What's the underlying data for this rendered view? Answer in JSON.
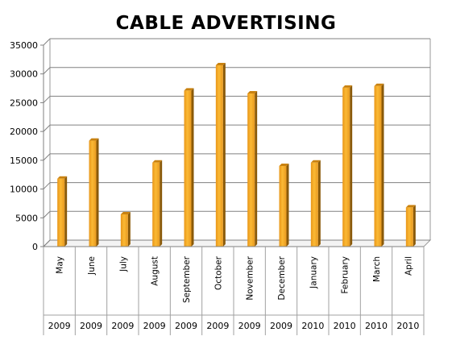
{
  "chart_data": {
    "type": "bar",
    "title": "CABLE ADVERTISING",
    "categories": [
      "May",
      "June",
      "July",
      "August",
      "September",
      "October",
      "November",
      "December",
      "January",
      "February",
      "March",
      "April"
    ],
    "years": [
      "2009",
      "2009",
      "2009",
      "2009",
      "2009",
      "2009",
      "2009",
      "2009",
      "2010",
      "2010",
      "2010",
      "2010"
    ],
    "values": [
      11800,
      18400,
      5600,
      14600,
      27100,
      31500,
      26600,
      14000,
      14600,
      27600,
      27900,
      6800
    ],
    "ylim": [
      0,
      35000
    ],
    "yticks": [
      "0",
      "5000",
      "10000",
      "15000",
      "20000",
      "25000",
      "30000",
      "35000"
    ],
    "grid": true,
    "bar_color": "#F5A623"
  }
}
